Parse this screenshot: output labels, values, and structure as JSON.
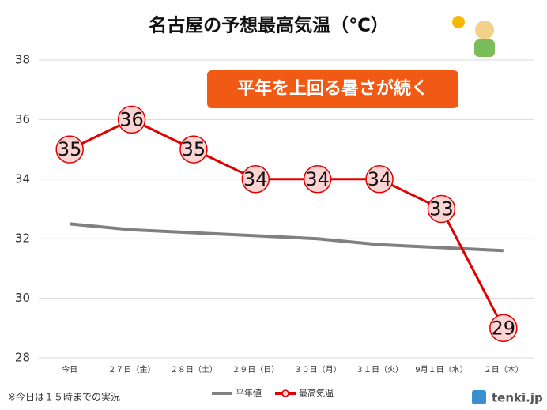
{
  "chart_data": {
    "type": "line",
    "title": "名古屋の予想最高気温（℃）",
    "annotation": "平年を上回る暑さが続く",
    "footnote": "※今日は１５時までの実況",
    "logo": "tenki.jp",
    "categories": [
      "今日",
      "２７日（金）",
      "２８日（土）",
      "２９日（日）",
      "３０日（月）",
      "３１日（火）",
      "9月１日（水）",
      "２日（木）"
    ],
    "series": [
      {
        "name": "平年値",
        "color": "#808080",
        "values": [
          32.5,
          32.3,
          32.2,
          32.1,
          32.0,
          31.8,
          31.7,
          31.6
        ]
      },
      {
        "name": "最高気温",
        "color": "#e00000",
        "values": [
          35,
          36,
          35,
          34,
          34,
          34,
          33,
          29
        ]
      }
    ],
    "ylim": [
      28,
      38
    ],
    "yticks": [
      28,
      30,
      32,
      34,
      36,
      38
    ],
    "grid": true
  }
}
